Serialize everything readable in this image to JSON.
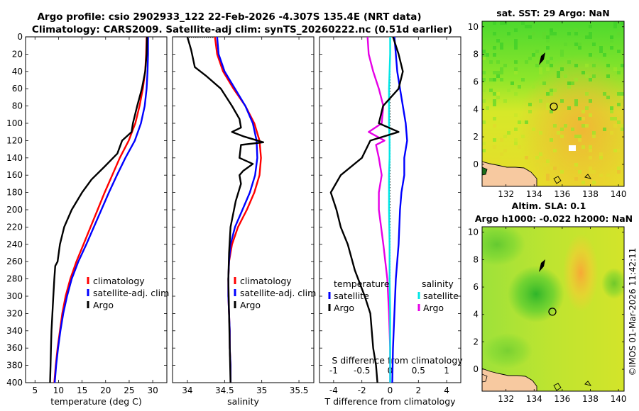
{
  "header": {
    "line1": "Argo profile: csio 2902933_122 22-Feb-2026 -4.307S 135.4E (NRT data)",
    "line2": "Climatology: CARS2009. Satellite-adj clim: synTS_20260222.nc (0.51d earlier)"
  },
  "credit": "©IMOS 01-Mar-2026 11:42:11",
  "colors": {
    "climatology": "#ff0000",
    "satellite": "#0000ff",
    "argo": "#000000",
    "s_satellite": "#00e6e6",
    "s_argo": "#e600e6",
    "land": "#f7c9a0"
  },
  "chart_data": [
    {
      "type": "line",
      "title": "",
      "xlabel": "temperature (deg C)",
      "ylabel": "",
      "xlim": [
        3,
        33
      ],
      "ylim": [
        400,
        0
      ],
      "xticks": [
        5,
        10,
        15,
        20,
        25,
        30
      ],
      "yticks": [
        0,
        20,
        40,
        60,
        80,
        100,
        120,
        140,
        160,
        180,
        200,
        220,
        240,
        260,
        280,
        300,
        320,
        340,
        360,
        380,
        400
      ],
      "legend": [
        "climatology",
        "satellite-adj. clim",
        "Argo"
      ],
      "series": [
        {
          "name": "climatology",
          "color": "climatology",
          "points": [
            [
              28.7,
              0
            ],
            [
              28.6,
              20
            ],
            [
              28.4,
              40
            ],
            [
              27.9,
              60
            ],
            [
              27.2,
              80
            ],
            [
              26.3,
              100
            ],
            [
              24.9,
              120
            ],
            [
              23,
              140
            ],
            [
              21.4,
              160
            ],
            [
              19.8,
              180
            ],
            [
              18.3,
              200
            ],
            [
              16.8,
              220
            ],
            [
              15.3,
              240
            ],
            [
              13.8,
              260
            ],
            [
              12.5,
              280
            ],
            [
              11.5,
              300
            ],
            [
              10.8,
              320
            ],
            [
              10.3,
              340
            ],
            [
              9.8,
              360
            ],
            [
              9.4,
              380
            ],
            [
              9.1,
              400
            ]
          ]
        },
        {
          "name": "satellite-adj. clim",
          "color": "satellite",
          "points": [
            [
              29,
              0
            ],
            [
              29,
              20
            ],
            [
              28.9,
              40
            ],
            [
              28.7,
              60
            ],
            [
              28.3,
              80
            ],
            [
              27.5,
              100
            ],
            [
              26.2,
              120
            ],
            [
              24.2,
              140
            ],
            [
              22.4,
              160
            ],
            [
              20.7,
              180
            ],
            [
              19.1,
              200
            ],
            [
              17.5,
              220
            ],
            [
              15.9,
              240
            ],
            [
              14.2,
              260
            ],
            [
              12.8,
              280
            ],
            [
              11.8,
              300
            ],
            [
              11,
              320
            ],
            [
              10.4,
              340
            ],
            [
              9.9,
              360
            ],
            [
              9.5,
              380
            ],
            [
              9.2,
              400
            ]
          ]
        },
        {
          "name": "Argo",
          "color": "argo",
          "points": [
            [
              28.8,
              0
            ],
            [
              28.7,
              20
            ],
            [
              28.4,
              40
            ],
            [
              27.7,
              60
            ],
            [
              26.7,
              80
            ],
            [
              25.8,
              100
            ],
            [
              25.5,
              110
            ],
            [
              23.5,
              120
            ],
            [
              22.5,
              135
            ],
            [
              19.8,
              150
            ],
            [
              17,
              165
            ],
            [
              15,
              180
            ],
            [
              12.8,
              200
            ],
            [
              11.2,
              220
            ],
            [
              10.3,
              240
            ],
            [
              9.8,
              260
            ],
            [
              9.3,
              265
            ],
            [
              9.1,
              280
            ],
            [
              8.9,
              300
            ],
            [
              8.7,
              320
            ],
            [
              8.5,
              340
            ],
            [
              8.4,
              360
            ],
            [
              8.3,
              380
            ],
            [
              8.2,
              400
            ]
          ]
        }
      ]
    },
    {
      "type": "line",
      "title": "",
      "xlabel": "salinity",
      "ylabel": "",
      "xlim": [
        33.8,
        35.7
      ],
      "ylim": [
        400,
        0
      ],
      "xticks": [
        34,
        34.5,
        35,
        35.5
      ],
      "legend": [
        "climatology",
        "satellite-adj. clim",
        "Argo"
      ],
      "series": [
        {
          "name": "climatology",
          "color": "climatology",
          "points": [
            [
              34.37,
              0
            ],
            [
              34.4,
              20
            ],
            [
              34.48,
              40
            ],
            [
              34.62,
              60
            ],
            [
              34.78,
              80
            ],
            [
              34.9,
              100
            ],
            [
              34.97,
              120
            ],
            [
              34.99,
              140
            ],
            [
              34.97,
              160
            ],
            [
              34.9,
              180
            ],
            [
              34.8,
              200
            ],
            [
              34.68,
              220
            ],
            [
              34.6,
              240
            ],
            [
              34.56,
              260
            ],
            [
              34.55,
              280
            ],
            [
              34.55,
              300
            ],
            [
              34.56,
              320
            ],
            [
              34.57,
              340
            ],
            [
              34.57,
              360
            ],
            [
              34.58,
              380
            ],
            [
              34.58,
              400
            ]
          ]
        },
        {
          "name": "satellite-adj. clim",
          "color": "satellite",
          "points": [
            [
              34.4,
              0
            ],
            [
              34.42,
              20
            ],
            [
              34.5,
              40
            ],
            [
              34.64,
              60
            ],
            [
              34.78,
              80
            ],
            [
              34.88,
              100
            ],
            [
              34.93,
              120
            ],
            [
              34.94,
              140
            ],
            [
              34.91,
              160
            ],
            [
              34.84,
              180
            ],
            [
              34.74,
              200
            ],
            [
              34.64,
              220
            ],
            [
              34.58,
              240
            ],
            [
              34.56,
              260
            ],
            [
              34.55,
              280
            ],
            [
              34.55,
              300
            ],
            [
              34.56,
              320
            ],
            [
              34.57,
              340
            ],
            [
              34.57,
              360
            ],
            [
              34.58,
              380
            ],
            [
              34.58,
              400
            ]
          ]
        },
        {
          "name": "Argo",
          "color": "argo",
          "points": [
            [
              34.0,
              0
            ],
            [
              34.05,
              15
            ],
            [
              34.1,
              35
            ],
            [
              34.25,
              45
            ],
            [
              34.45,
              60
            ],
            [
              34.6,
              80
            ],
            [
              34.7,
              95
            ],
            [
              34.72,
              105
            ],
            [
              34.6,
              110
            ],
            [
              34.75,
              115
            ],
            [
              35.02,
              122
            ],
            [
              34.72,
              125
            ],
            [
              34.7,
              140
            ],
            [
              34.88,
              147
            ],
            [
              34.75,
              155
            ],
            [
              34.7,
              160
            ],
            [
              34.72,
              170
            ],
            [
              34.65,
              190
            ],
            [
              34.58,
              220
            ],
            [
              34.56,
              250
            ],
            [
              34.55,
              280
            ],
            [
              34.56,
              320
            ],
            [
              34.57,
              360
            ],
            [
              34.58,
              400
            ]
          ]
        }
      ]
    },
    {
      "type": "line",
      "title": "",
      "xlabel": "T difference from climatology",
      "x2label": "S difference from climatology",
      "ylabel": "",
      "xlim": [
        -5,
        5
      ],
      "x2lim": [
        -1.25,
        1.25
      ],
      "ylim": [
        400,
        0
      ],
      "xticks": [
        -4,
        -2,
        0,
        2,
        4
      ],
      "x2ticks": [
        -1,
        -0.5,
        0,
        0.5,
        1
      ],
      "x2ticklabels": [
        "-1",
        "-0.5",
        "0",
        "0.5",
        "1"
      ],
      "legend_titles": [
        "temperature",
        "salinity"
      ],
      "legend": [
        "satellite",
        "Argo",
        "satellite",
        "Argo"
      ],
      "series": [
        {
          "name": "T satellite",
          "color": "satellite",
          "axis": "T",
          "points": [
            [
              0.3,
              0
            ],
            [
              0.4,
              20
            ],
            [
              0.5,
              40
            ],
            [
              0.7,
              60
            ],
            [
              0.9,
              80
            ],
            [
              1.1,
              100
            ],
            [
              1.2,
              120
            ],
            [
              1,
              140
            ],
            [
              1,
              160
            ],
            [
              0.8,
              180
            ],
            [
              0.7,
              200
            ],
            [
              0.6,
              240
            ],
            [
              0.4,
              280
            ],
            [
              0.3,
              320
            ],
            [
              0.2,
              360
            ],
            [
              0.15,
              400
            ]
          ]
        },
        {
          "name": "T Argo",
          "color": "argo",
          "axis": "T",
          "points": [
            [
              0.2,
              0
            ],
            [
              0.6,
              20
            ],
            [
              0.9,
              40
            ],
            [
              0.6,
              60
            ],
            [
              -0.5,
              80
            ],
            [
              -0.8,
              100
            ],
            [
              0.6,
              110
            ],
            [
              -1.4,
              120
            ],
            [
              -2,
              140
            ],
            [
              -3.5,
              160
            ],
            [
              -4.2,
              180
            ],
            [
              -3.8,
              200
            ],
            [
              -3.5,
              220
            ],
            [
              -3,
              240
            ],
            [
              -2.5,
              270
            ],
            [
              -1.8,
              300
            ],
            [
              -1.4,
              320
            ],
            [
              -1.2,
              360
            ],
            [
              -1,
              380
            ],
            [
              -0.9,
              400
            ]
          ]
        },
        {
          "name": "S satellite",
          "color": "s_satellite",
          "axis": "S",
          "points": [
            [
              0,
              0
            ],
            [
              0,
              20
            ],
            [
              -0.01,
              40
            ],
            [
              -0.02,
              60
            ],
            [
              -0.02,
              80
            ],
            [
              -0.02,
              100
            ],
            [
              -0.01,
              120
            ],
            [
              -0.01,
              140
            ],
            [
              -0.02,
              160
            ],
            [
              -0.02,
              200
            ],
            [
              -0.01,
              240
            ],
            [
              -0.01,
              280
            ],
            [
              0,
              320
            ],
            [
              0,
              360
            ],
            [
              0,
              400
            ]
          ]
        },
        {
          "name": "S Argo",
          "color": "s_argo",
          "axis": "S",
          "points": [
            [
              -0.4,
              0
            ],
            [
              -0.38,
              20
            ],
            [
              -0.3,
              40
            ],
            [
              -0.2,
              60
            ],
            [
              -0.12,
              80
            ],
            [
              -0.15,
              100
            ],
            [
              -0.38,
              110
            ],
            [
              -0.1,
              120
            ],
            [
              -0.25,
              125
            ],
            [
              -0.2,
              140
            ],
            [
              -0.15,
              160
            ],
            [
              -0.2,
              180
            ],
            [
              -0.2,
              200
            ],
            [
              -0.12,
              240
            ],
            [
              -0.05,
              280
            ],
            [
              -0.02,
              320
            ],
            [
              0,
              360
            ],
            [
              0,
              400
            ]
          ]
        }
      ]
    },
    {
      "type": "heatmap",
      "title": "sat. SST: 29 Argo: NaN",
      "xlim": [
        130.3,
        140.4
      ],
      "ylim": [
        -1.6,
        10.4
      ],
      "xticks": [
        132,
        134,
        136,
        138,
        140
      ],
      "yticks": [
        0,
        2,
        4,
        6,
        8,
        10
      ],
      "marker": [
        135.4,
        4.2
      ]
    },
    {
      "type": "heatmap",
      "title": "Altim. SLA: 0.1",
      "subtitle": "Argo h1000: -0.022 h2000: NaN",
      "xlim": [
        130.3,
        140.4
      ],
      "ylim": [
        -1.6,
        10.4
      ],
      "xticks": [
        132,
        134,
        136,
        138,
        140
      ],
      "yticks": [
        0,
        2,
        4,
        6,
        8,
        10
      ],
      "marker": [
        135.3,
        4.2
      ]
    }
  ]
}
